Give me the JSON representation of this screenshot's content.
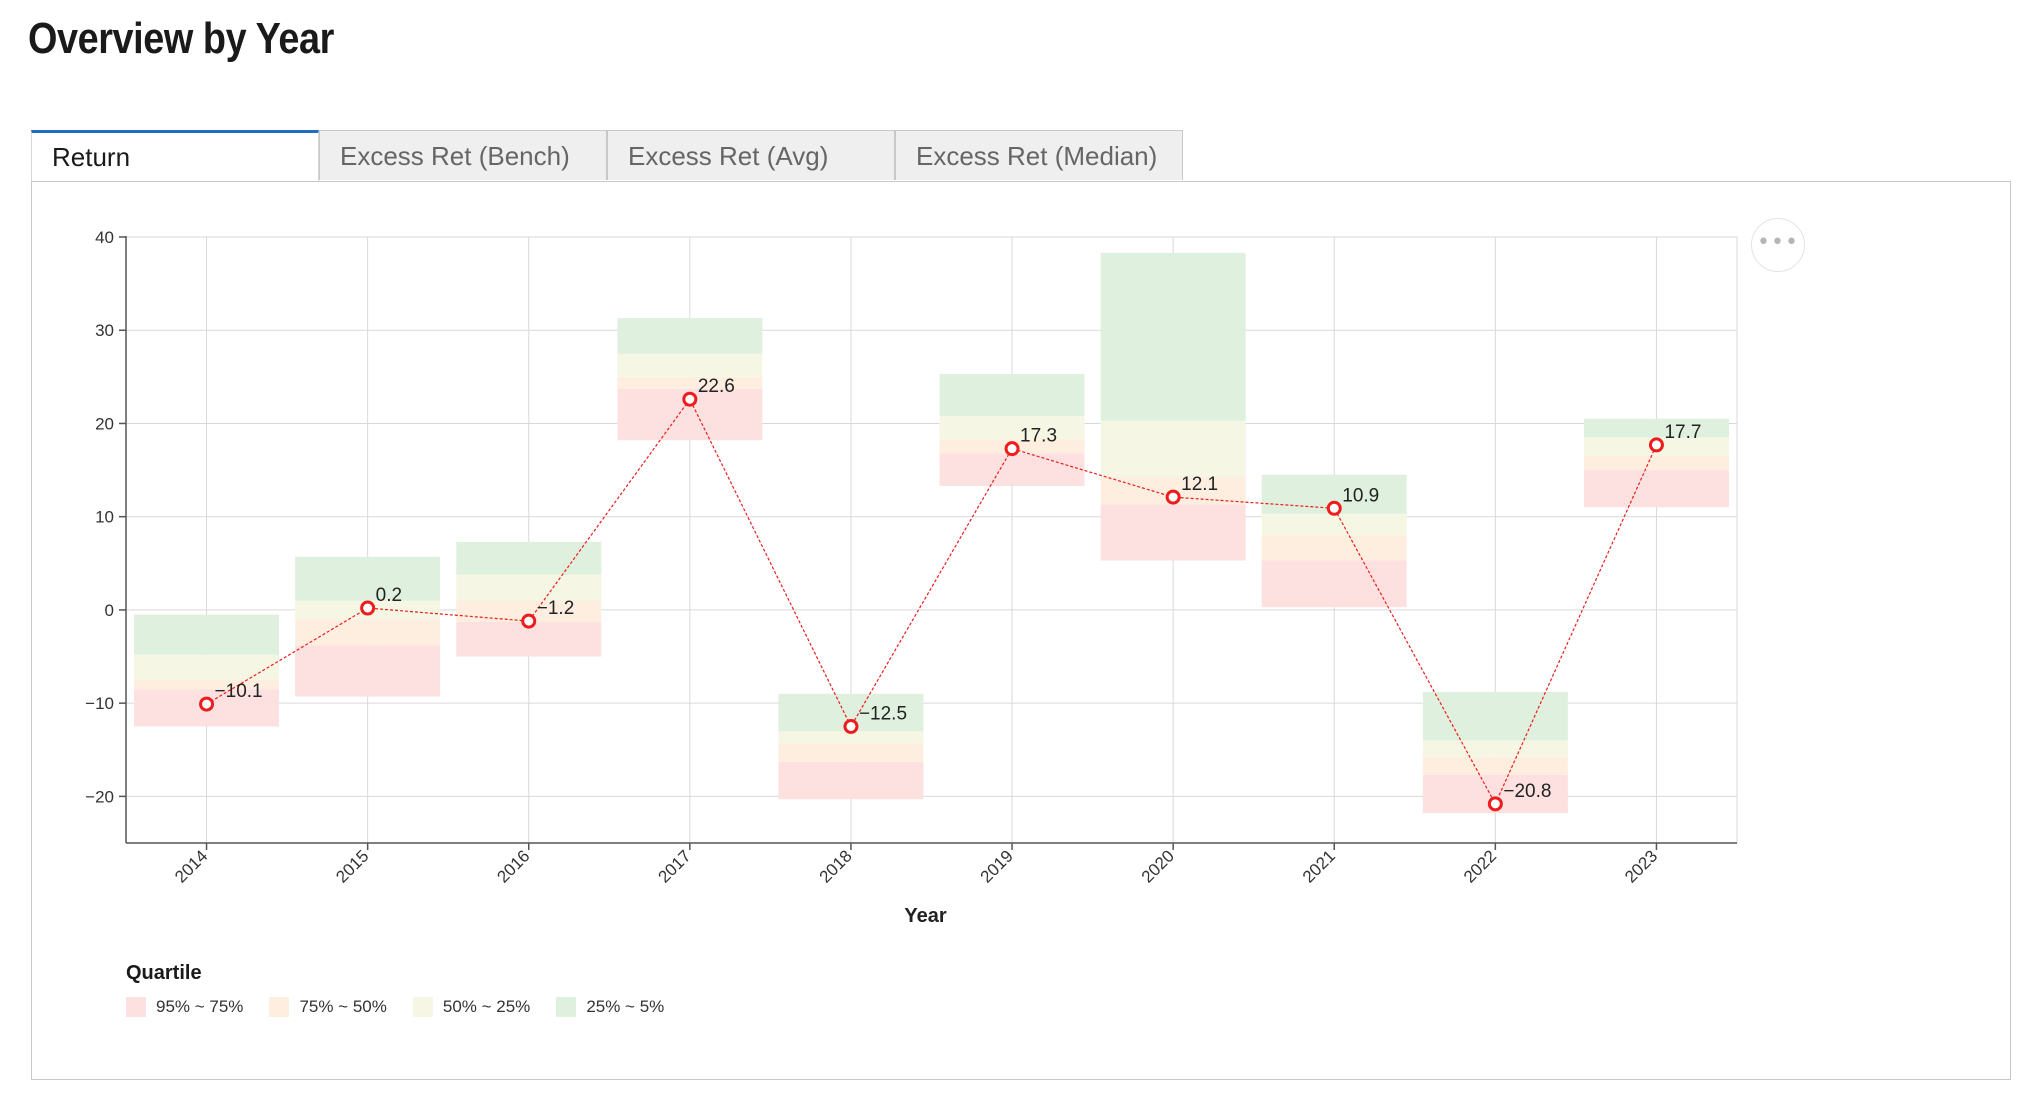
{
  "page": {
    "title": "Overview by Year"
  },
  "tabs": [
    {
      "label": "Return",
      "active": true
    },
    {
      "label": "Excess Ret (Bench)",
      "active": false
    },
    {
      "label": "Excess Ret (Avg)",
      "active": false
    },
    {
      "label": "Excess Ret (Median)",
      "active": false
    }
  ],
  "menu": {
    "icon": "ellipsis-icon",
    "glyph": "•••"
  },
  "legend": {
    "title": "Quartile",
    "items": [
      {
        "label": "95% ~ 75%",
        "color": "#fde0e0"
      },
      {
        "label": "75% ~ 50%",
        "color": "#fdeee0"
      },
      {
        "label": "50% ~ 25%",
        "color": "#f5f6e4"
      },
      {
        "label": "25% ~ 5%",
        "color": "#dff0de"
      }
    ]
  },
  "chart_data": {
    "type": "line",
    "xlabel": "Year",
    "ylabel": "",
    "ylim": [
      -25,
      40
    ],
    "yticks": [
      -20,
      -10,
      0,
      10,
      20,
      30,
      40
    ],
    "grid": true,
    "legend_placement": "bottom-left",
    "categories": [
      "2014",
      "2015",
      "2016",
      "2017",
      "2018",
      "2019",
      "2020",
      "2021",
      "2022",
      "2023"
    ],
    "series": [
      {
        "values": [
          -10.1,
          0.2,
          -1.2,
          22.6,
          -12.5,
          17.3,
          12.1,
          10.9,
          -20.8,
          17.7
        ],
        "labels": [
          "−10.1",
          "0.2",
          "−1.2",
          "22.6",
          "−12.5",
          "17.3",
          "12.1",
          "10.9",
          "−20.8",
          "17.7"
        ],
        "color": "#ee1c1c"
      }
    ],
    "quartile_bands": [
      {
        "year": "2014",
        "bounds": [
          -12.5,
          -8.5,
          -7.5,
          -4.8,
          -0.5
        ]
      },
      {
        "year": "2015",
        "bounds": [
          -9.3,
          -3.8,
          -1.0,
          1.0,
          5.7
        ]
      },
      {
        "year": "2016",
        "bounds": [
          -5.0,
          -1.3,
          1.0,
          3.8,
          7.3
        ]
      },
      {
        "year": "2017",
        "bounds": [
          18.2,
          23.7,
          25.0,
          27.5,
          31.3
        ]
      },
      {
        "year": "2018",
        "bounds": [
          -20.3,
          -16.3,
          -14.3,
          -13.0,
          -9.0
        ]
      },
      {
        "year": "2019",
        "bounds": [
          13.3,
          16.8,
          18.3,
          20.8,
          25.3
        ]
      },
      {
        "year": "2020",
        "bounds": [
          5.3,
          11.3,
          14.3,
          20.3,
          38.3
        ]
      },
      {
        "year": "2021",
        "bounds": [
          0.3,
          5.3,
          8.0,
          10.3,
          14.5
        ]
      },
      {
        "year": "2022",
        "bounds": [
          -21.8,
          -17.7,
          -15.8,
          -14.0,
          -8.8
        ]
      },
      {
        "year": "2023",
        "bounds": [
          11.0,
          15.0,
          16.5,
          18.5,
          20.5
        ]
      }
    ]
  }
}
